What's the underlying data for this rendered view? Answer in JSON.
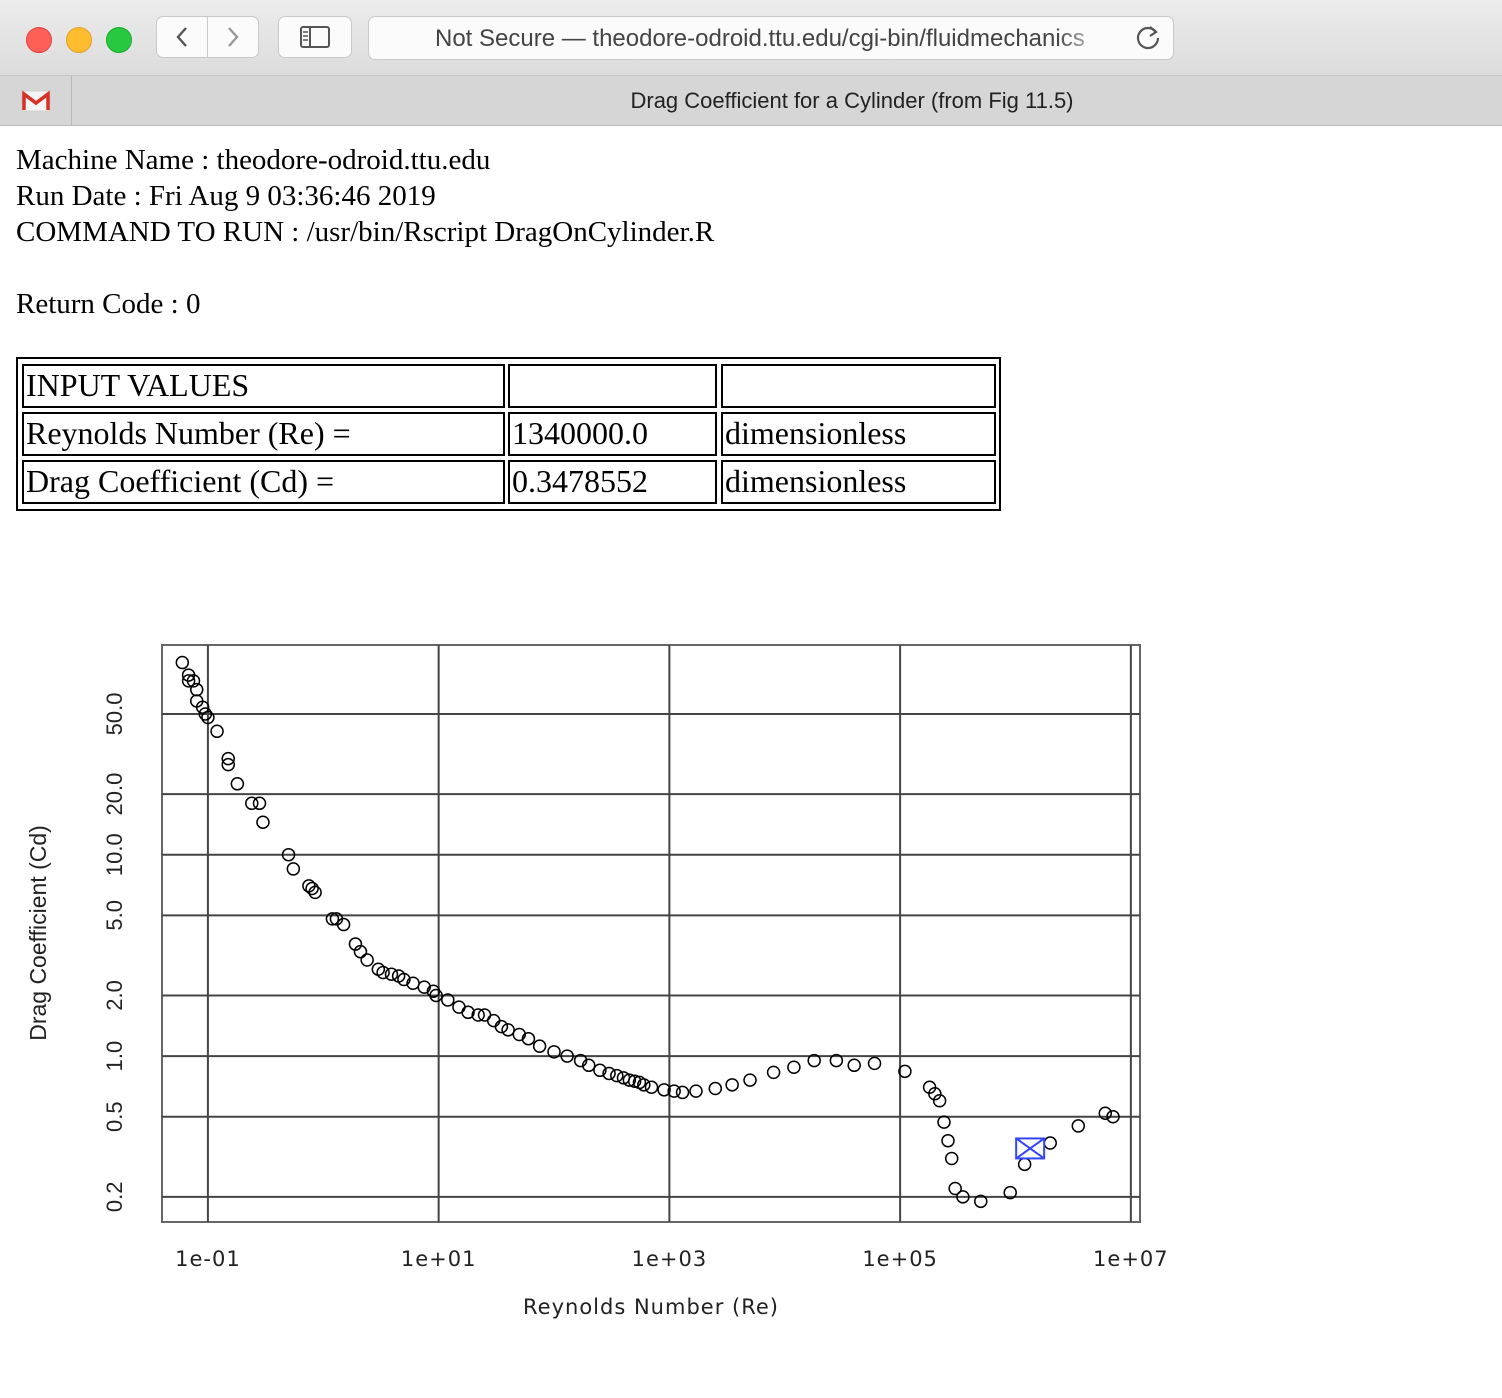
{
  "browser": {
    "url": "Not Secure — theodore-odroid.ttu.edu/cgi-bin/fluidmechanics",
    "tab_title": "Drag Coefficient for a Cylinder (from Fig 11.5)",
    "tab_icon": "gmail-icon"
  },
  "page": {
    "machine_name": "Machine Name : theodore-odroid.ttu.edu",
    "run_date": "Run Date : Fri Aug 9 03:36:46 2019",
    "command": "COMMAND TO RUN : /usr/bin/Rscript DragOnCylinder.R",
    "return_code": "Return Code : 0"
  },
  "table": {
    "rows": [
      [
        "INPUT VALUES",
        "",
        ""
      ],
      [
        "Reynolds Number (Re) =",
        "1340000.0",
        "dimensionless"
      ],
      [
        "Drag Coefficient (Cd) =",
        "0.3478552",
        "dimensionless"
      ]
    ]
  },
  "chart_data": {
    "type": "scatter",
    "xlabel": "Reynolds Number (Re)",
    "ylabel": "Drag Coefficient (Cd)",
    "x_scale": "log",
    "y_scale": "log",
    "xlim": [
      0.04,
      12000000
    ],
    "ylim": [
      0.15,
      110
    ],
    "x_ticks": [
      {
        "value": 0.1,
        "label": "1e-01"
      },
      {
        "value": 10,
        "label": "1e+01"
      },
      {
        "value": 1000,
        "label": "1e+03"
      },
      {
        "value": 100000,
        "label": "1e+05"
      },
      {
        "value": 10000000,
        "label": "1e+07"
      }
    ],
    "y_ticks": [
      {
        "value": 0.2,
        "label": "0.2"
      },
      {
        "value": 0.5,
        "label": "0.5"
      },
      {
        "value": 1,
        "label": "1.0"
      },
      {
        "value": 2,
        "label": "2.0"
      },
      {
        "value": 5,
        "label": "5.0"
      },
      {
        "value": 10,
        "label": "10.0"
      },
      {
        "value": 20,
        "label": "20.0"
      },
      {
        "value": 50,
        "label": "50.0"
      }
    ],
    "grid": true,
    "point_color": "#000000",
    "highlight_color": "#3344ff",
    "series": [
      {
        "points": [
          [
            0.06,
            90
          ],
          [
            0.068,
            78
          ],
          [
            0.068,
            73
          ],
          [
            0.075,
            73
          ],
          [
            0.08,
            66
          ],
          [
            0.08,
            58
          ],
          [
            0.09,
            54
          ],
          [
            0.095,
            50
          ],
          [
            0.1,
            48
          ],
          [
            0.12,
            41
          ],
          [
            0.15,
            30
          ],
          [
            0.15,
            28
          ],
          [
            0.18,
            22.5
          ],
          [
            0.24,
            18
          ],
          [
            0.28,
            18
          ],
          [
            0.3,
            14.5
          ],
          [
            0.5,
            10
          ],
          [
            0.55,
            8.5
          ],
          [
            0.75,
            7
          ],
          [
            0.8,
            6.8
          ],
          [
            0.85,
            6.5
          ],
          [
            1.2,
            4.8
          ],
          [
            1.3,
            4.8
          ],
          [
            1.5,
            4.5
          ],
          [
            1.9,
            3.6
          ],
          [
            2.1,
            3.3
          ],
          [
            2.4,
            3.0
          ],
          [
            3.0,
            2.7
          ],
          [
            3.3,
            2.6
          ],
          [
            3.9,
            2.55
          ],
          [
            4.5,
            2.5
          ],
          [
            5.0,
            2.4
          ],
          [
            6.0,
            2.3
          ],
          [
            7.5,
            2.2
          ],
          [
            9.0,
            2.1
          ],
          [
            9.5,
            2.0
          ],
          [
            12,
            1.9
          ],
          [
            15,
            1.75
          ],
          [
            18,
            1.65
          ],
          [
            22,
            1.6
          ],
          [
            25,
            1.6
          ],
          [
            30,
            1.5
          ],
          [
            35,
            1.4
          ],
          [
            40,
            1.35
          ],
          [
            50,
            1.28
          ],
          [
            60,
            1.22
          ],
          [
            75,
            1.12
          ],
          [
            100,
            1.05
          ],
          [
            130,
            1.0
          ],
          [
            170,
            0.95
          ],
          [
            200,
            0.9
          ],
          [
            250,
            0.85
          ],
          [
            300,
            0.82
          ],
          [
            350,
            0.8
          ],
          [
            400,
            0.78
          ],
          [
            450,
            0.76
          ],
          [
            500,
            0.75
          ],
          [
            550,
            0.74
          ],
          [
            600,
            0.72
          ],
          [
            700,
            0.7
          ],
          [
            900,
            0.68
          ],
          [
            1100,
            0.67
          ],
          [
            1300,
            0.66
          ],
          [
            1700,
            0.67
          ],
          [
            2500,
            0.69
          ],
          [
            3500,
            0.72
          ],
          [
            5000,
            0.76
          ],
          [
            8000,
            0.83
          ],
          [
            12000,
            0.88
          ],
          [
            18000,
            0.95
          ],
          [
            28000,
            0.95
          ],
          [
            40000,
            0.9
          ],
          [
            60000,
            0.92
          ],
          [
            110000,
            0.84
          ],
          [
            180000,
            0.7
          ],
          [
            200000,
            0.65
          ],
          [
            220000,
            0.6
          ],
          [
            240000,
            0.47
          ],
          [
            260000,
            0.38
          ],
          [
            280000,
            0.31
          ],
          [
            300000,
            0.22
          ],
          [
            350000,
            0.2
          ],
          [
            500000,
            0.19
          ],
          [
            900000,
            0.21
          ],
          [
            1200000,
            0.29
          ],
          [
            2000000,
            0.37
          ],
          [
            3500000,
            0.45
          ],
          [
            6000000,
            0.52
          ],
          [
            7000000,
            0.5
          ]
        ]
      }
    ],
    "highlight": {
      "x": 1340000.0,
      "y": 0.3478552
    }
  }
}
